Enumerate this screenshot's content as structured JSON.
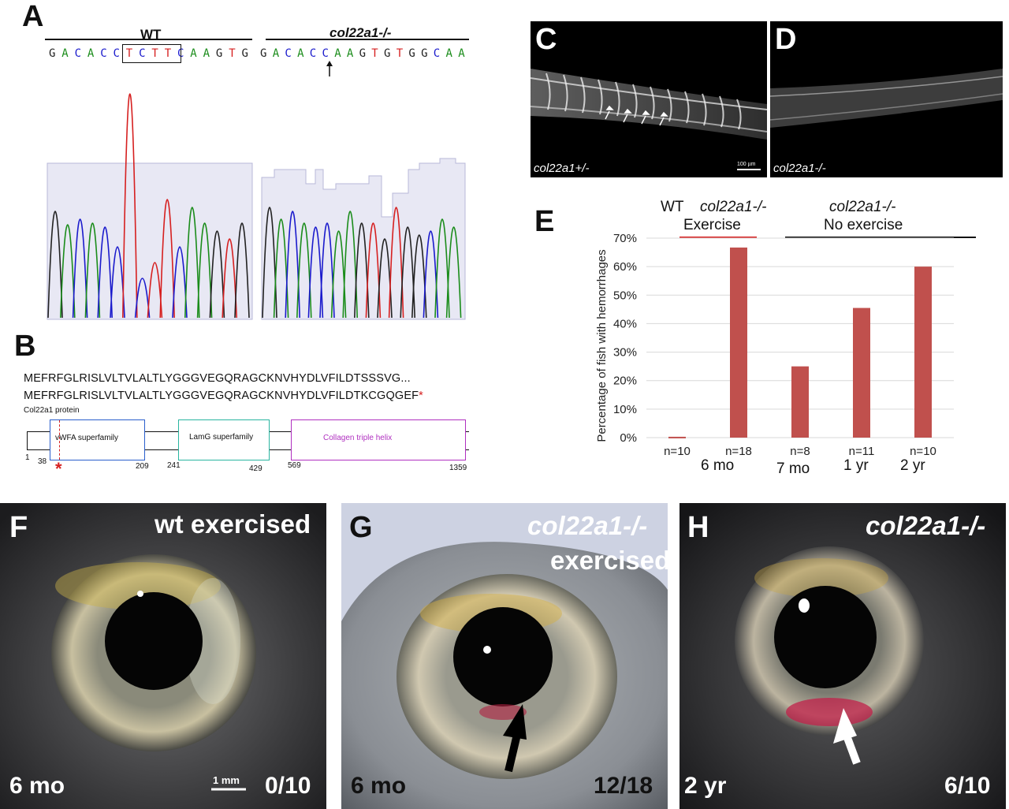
{
  "panel_labels": {
    "A": "A",
    "B": "B",
    "C": "C",
    "D": "D",
    "E": "E",
    "F": "F",
    "G": "G",
    "H": "H"
  },
  "panelA": {
    "wt_title": "WT",
    "mut_title": "col22a1-/-",
    "wt_seq": [
      "G",
      "A",
      "C",
      "A",
      "C",
      "C",
      "T",
      "C",
      "T",
      "T",
      "C",
      "A",
      "A",
      "G",
      "T",
      "G"
    ],
    "mut_seq": [
      "G",
      "A",
      "C",
      "A",
      "C",
      "C",
      "A",
      "A",
      "G",
      "T",
      "G",
      "T",
      "G",
      "G",
      "C",
      "A",
      "A"
    ],
    "boxed_span": "TCTTC",
    "base_colors": {
      "A": "#1a8c1a",
      "C": "#1a1acc",
      "G": "#222222",
      "T": "#d62020"
    }
  },
  "panelB": {
    "seq_wt": "MEFRFGLRISLVLTVLALTLYGGGVEGQRAGCKNVHYDLVFILDTSSSVG...",
    "seq_mut": "MEFRFGLRISLVLTVLALTLYGGGVEGQRAGCKNVHYDLVFILDTKCGQGEF",
    "stop_mark": "*",
    "protein_label": "Col22a1 protein",
    "domains": [
      {
        "name": "vWFA superfamily",
        "color": "#2a5fcc"
      },
      {
        "name": "LamG superfamily",
        "color": "#2ab5a0"
      },
      {
        "name": "Collagen triple helix",
        "color": "#b030c0"
      }
    ],
    "positions": [
      "1",
      "38",
      "209",
      "241",
      "429",
      "569",
      "1359"
    ]
  },
  "panelC": {
    "caption": "col22a1+/-",
    "scale": "100 µm"
  },
  "panelD": {
    "caption": "col22a1-/-"
  },
  "panelE": {
    "header_wt": "WT",
    "header_mut_ex": "col22a1-/-",
    "header_ex": "Exercise",
    "header_mut_noex": "col22a1-/-",
    "header_noex": "No exercise",
    "ages": [
      "6 mo",
      "7 mo",
      "1 yr",
      "2 yr"
    ]
  },
  "chart_data": {
    "type": "bar",
    "title": "",
    "xlabel": "",
    "ylabel": "Percentage of fish with hemorrhages",
    "ylim": [
      0,
      70
    ],
    "yticks": [
      "0%",
      "10%",
      "20%",
      "30%",
      "40%",
      "50%",
      "60%",
      "70%"
    ],
    "categories": [
      "n=10",
      "n=18",
      "n=8",
      "n=11",
      "n=10"
    ],
    "values": [
      0.3,
      66.7,
      25,
      45.5,
      60
    ],
    "bar_color": "#c0504d",
    "grid": true
  },
  "panelF": {
    "title": "wt exercised",
    "age": "6 mo",
    "scale": "1 mm",
    "ratio": "0/10"
  },
  "panelG": {
    "title1": "col22a1-/-",
    "title2": "exercised",
    "age": "6 mo",
    "ratio": "12/18"
  },
  "panelH": {
    "title": "col22a1-/-",
    "age": "2 yr",
    "ratio": "6/10"
  }
}
